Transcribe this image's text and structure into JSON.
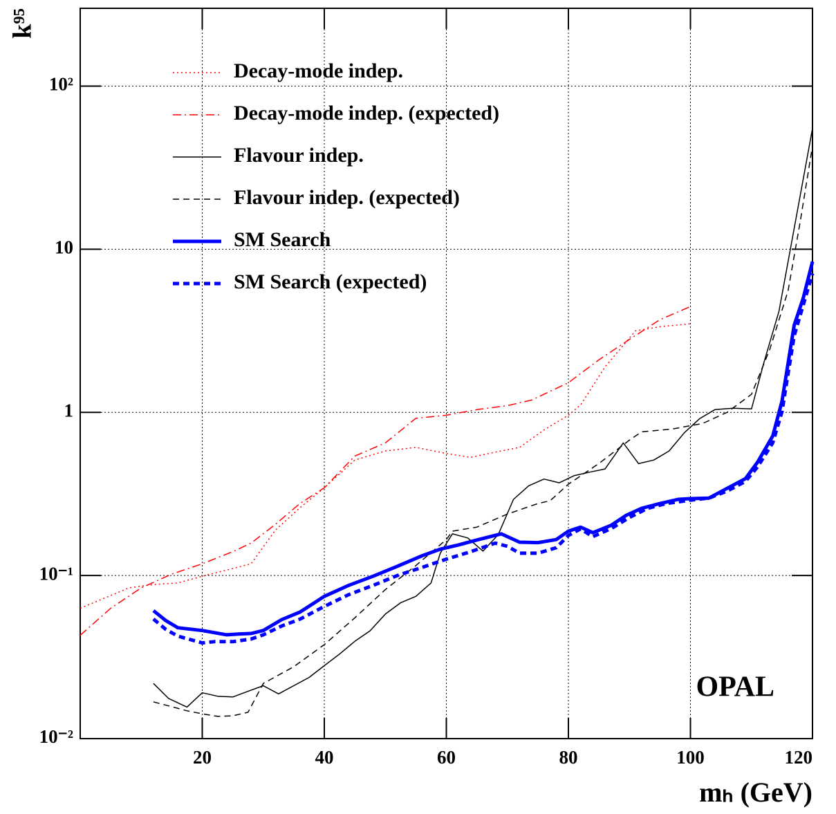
{
  "chart_data": {
    "type": "line",
    "x_label": "mₕ (GeV)",
    "y_label": "k⁹⁵",
    "annotation": "OPAL",
    "xlim": [
      0,
      120
    ],
    "xticks": [
      20,
      40,
      60,
      80,
      100,
      120
    ],
    "ylim": [
      0.01,
      300
    ],
    "yticks": [
      {
        "value": 0.01,
        "label": "10⁻²"
      },
      {
        "value": 0.1,
        "label": "10⁻¹"
      },
      1,
      10,
      {
        "value": 100,
        "label": "10²"
      }
    ],
    "log_y": true,
    "grid": true,
    "legend": "upper left",
    "series": [
      {
        "name": "Decay-mode indep.",
        "color": "#ff0000",
        "style": "dotted",
        "width": 1.5,
        "x": [
          0,
          8,
          12,
          16,
          20,
          24,
          28,
          32,
          36,
          40,
          45,
          50,
          55,
          60,
          64,
          68,
          72,
          76,
          80,
          82,
          86,
          91,
          95,
          100
        ],
        "values": [
          0.063,
          0.084,
          0.088,
          0.09,
          0.099,
          0.108,
          0.118,
          0.19,
          0.26,
          0.345,
          0.51,
          0.58,
          0.61,
          0.56,
          0.53,
          0.57,
          0.61,
          0.78,
          0.96,
          1.11,
          1.9,
          3.16,
          3.35,
          3.49
        ]
      },
      {
        "name": "Decay-mode indep. (expected)",
        "color": "#ff0000",
        "style": "dashdot",
        "width": 1.5,
        "x": [
          0,
          5,
          10,
          15,
          20,
          25,
          28,
          32,
          36,
          40,
          45,
          50,
          55,
          60,
          65,
          70,
          74,
          80,
          85,
          90,
          95,
          100
        ],
        "values": [
          0.043,
          0.063,
          0.084,
          0.102,
          0.118,
          0.14,
          0.158,
          0.206,
          0.276,
          0.345,
          0.54,
          0.65,
          0.92,
          0.96,
          1.04,
          1.1,
          1.19,
          1.52,
          2.1,
          2.8,
          3.7,
          4.45
        ]
      },
      {
        "name": "Flavour indep.",
        "color": "#000000",
        "style": "solid",
        "width": 1.5,
        "x": [
          12,
          14.5,
          17.5,
          20,
          22.5,
          25,
          27.5,
          30,
          32.5,
          37.5,
          40,
          42.5,
          45,
          47.5,
          50,
          52.5,
          55,
          57.5,
          59,
          61,
          63.5,
          66,
          68.5,
          71,
          73.5,
          76,
          78.5,
          81,
          83.5,
          86,
          89,
          91.5,
          94,
          96.5,
          99,
          101.5,
          104,
          107,
          110,
          112,
          114.5,
          117,
          120
        ],
        "values": [
          0.0218,
          0.0176,
          0.0156,
          0.0191,
          0.0182,
          0.018,
          0.0195,
          0.0211,
          0.0188,
          0.0237,
          0.028,
          0.033,
          0.0395,
          0.0458,
          0.058,
          0.068,
          0.0745,
          0.09,
          0.137,
          0.18,
          0.17,
          0.141,
          0.178,
          0.293,
          0.355,
          0.39,
          0.37,
          0.41,
          0.43,
          0.45,
          0.65,
          0.485,
          0.51,
          0.58,
          0.75,
          0.915,
          1.04,
          1.06,
          1.05,
          2.0,
          4.16,
          13.4,
          55
        ]
      },
      {
        "name": "Flavour indep. (expected)",
        "color": "#000000",
        "style": "dashed",
        "width": 1.5,
        "x": [
          12,
          15,
          17.5,
          20,
          22.5,
          25,
          27.5,
          30,
          35,
          40,
          45,
          50,
          55,
          60,
          61,
          65,
          70,
          75,
          77,
          80,
          85,
          90,
          92,
          97,
          102,
          106,
          110,
          113,
          116,
          118,
          120
        ],
        "values": [
          0.0168,
          0.0157,
          0.0148,
          0.0142,
          0.0137,
          0.0138,
          0.0145,
          0.0218,
          0.0276,
          0.0377,
          0.055,
          0.082,
          0.115,
          0.166,
          0.187,
          0.198,
          0.238,
          0.276,
          0.287,
          0.363,
          0.486,
          0.676,
          0.76,
          0.79,
          0.855,
          1.0,
          1.29,
          2.43,
          5.57,
          14.8,
          43
        ]
      },
      {
        "name": "SM Search",
        "color": "#0000ff",
        "style": "solid",
        "width": 5,
        "x": [
          12,
          14,
          16,
          20,
          24,
          26,
          28,
          30,
          33,
          36,
          40,
          44,
          48,
          52,
          56,
          59,
          62,
          65,
          69,
          72,
          75,
          78,
          80,
          82,
          84,
          87,
          89.5,
          92,
          95,
          98,
          100,
          103,
          106,
          109,
          111,
          113.5,
          115,
          117,
          118.5,
          120
        ],
        "values": [
          0.0609,
          0.053,
          0.0478,
          0.046,
          0.0433,
          0.0438,
          0.0441,
          0.046,
          0.0536,
          0.0596,
          0.0745,
          0.087,
          0.099,
          0.114,
          0.132,
          0.145,
          0.154,
          0.165,
          0.18,
          0.16,
          0.159,
          0.166,
          0.187,
          0.198,
          0.183,
          0.203,
          0.234,
          0.258,
          0.276,
          0.293,
          0.296,
          0.298,
          0.342,
          0.392,
          0.495,
          0.718,
          1.17,
          3.42,
          5.05,
          8.4
        ]
      },
      {
        "name": "SM Search (expected)",
        "color": "#0000ff",
        "style": "dashed",
        "width": 5,
        "x": [
          12,
          14,
          16,
          20,
          22,
          25,
          28,
          30,
          33,
          36,
          40,
          44,
          48,
          52,
          56,
          60,
          64,
          68,
          70,
          72,
          75,
          78,
          80,
          82,
          84,
          87,
          90,
          93,
          96,
          100,
          103,
          106,
          109,
          111,
          113.5,
          115,
          117,
          118.5,
          120
        ],
        "values": [
          0.0541,
          0.0468,
          0.0425,
          0.0386,
          0.0393,
          0.0393,
          0.0408,
          0.0433,
          0.049,
          0.054,
          0.0646,
          0.0763,
          0.087,
          0.1,
          0.112,
          0.126,
          0.14,
          0.158,
          0.151,
          0.137,
          0.137,
          0.148,
          0.176,
          0.193,
          0.173,
          0.194,
          0.227,
          0.258,
          0.276,
          0.29,
          0.298,
          0.329,
          0.377,
          0.463,
          0.651,
          1.01,
          2.95,
          4.58,
          7.1
        ]
      }
    ]
  }
}
